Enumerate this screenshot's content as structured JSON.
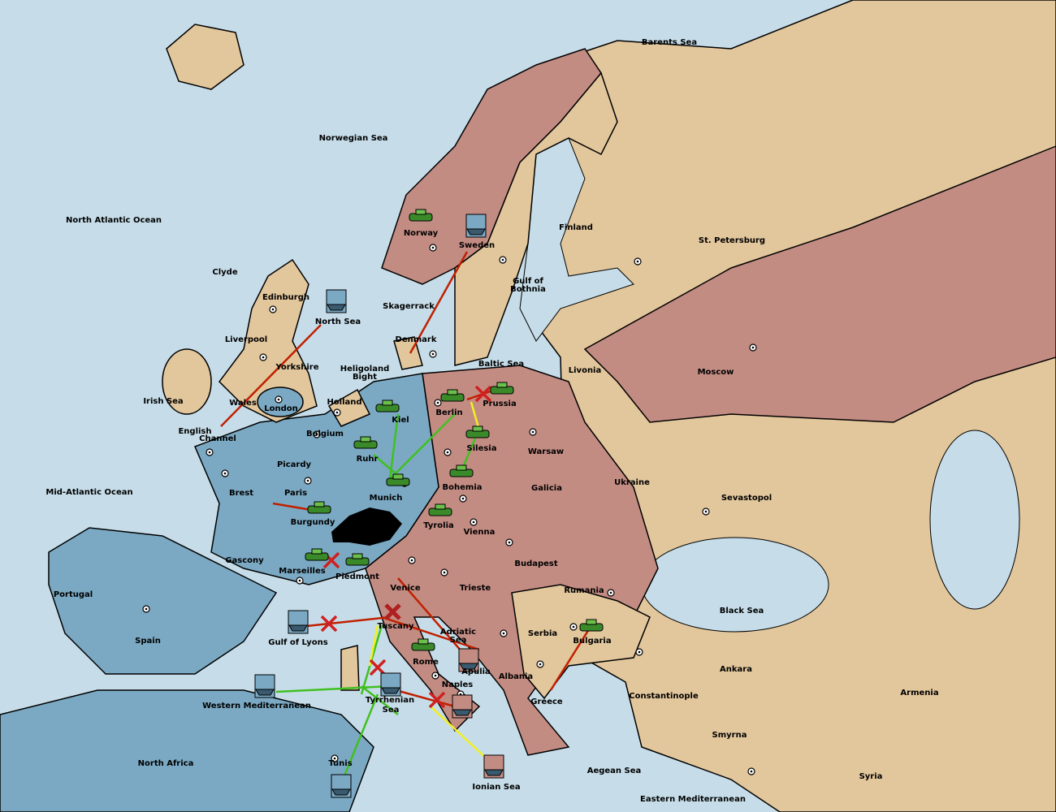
{
  "map": {
    "regions": [
      "Barents Sea",
      "Norwegian Sea",
      "North Atlantic Ocean",
      "Norway",
      "Sweden",
      "Finland",
      "St. Petersburg",
      "Clyde",
      "Edinburgh",
      "Gulf of",
      "Bothnia",
      "Skagerrack",
      "North Sea",
      "Liverpool",
      "Denmark",
      "Baltic Sea",
      "Yorkshire",
      "Heligoland",
      "Bight",
      "Livonia",
      "Moscow",
      "Irish Sea",
      "Wales",
      "Holland",
      "Prussia",
      "London",
      "Berlin",
      "Kiel",
      "English",
      "Channel",
      "Belgium",
      "Warsaw",
      "Silesia",
      "Ruhr",
      "Picardy",
      "Ukraine",
      "Mid-Atlantic Ocean",
      "Brest",
      "Paris",
      "Munich",
      "Bohemia",
      "Galicia",
      "Sevastopol",
      "Burgundy",
      "Tyrolia",
      "Vienna",
      "Gascony",
      "Budapest",
      "Marseilles",
      "Piedmont",
      "Portugal",
      "Venice",
      "Trieste",
      "Rumania",
      "Black Sea",
      "Tuscany",
      "Gulf of Lyons",
      "Adriatic",
      "Sea",
      "Spain",
      "Serbia",
      "Bulgaria",
      "Rome",
      "Apulia",
      "Albania",
      "Ankara",
      "Naples",
      "Armenia",
      "Constantinople",
      "Western Mediterranean",
      "Tyrrhenian",
      "Sea",
      "Greece",
      "Smyrna",
      "North Africa",
      "Tunis",
      "Aegean Sea",
      "Syria",
      "Ionian Sea",
      "Eastern Mediterranean"
    ]
  }
}
